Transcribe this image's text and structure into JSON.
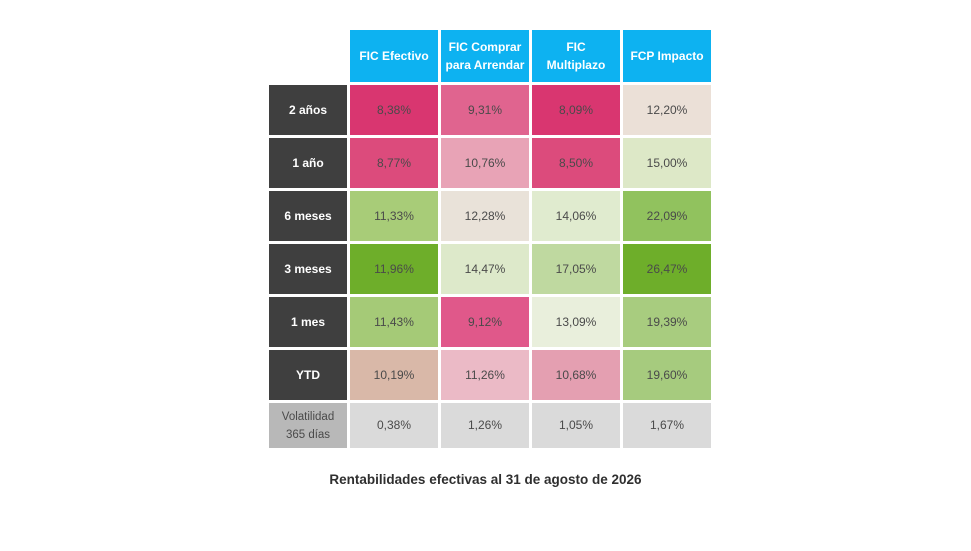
{
  "chart_data": {
    "type": "table",
    "title": "Rentabilidades efectivas al 31 de agosto de 2026",
    "columns": [
      "FIC Efectivo",
      "FIC Comprar\npara Arrendar",
      "FIC\nMultiplazo",
      "FCP Impacto"
    ],
    "rows": [
      {
        "label": "2 años",
        "values": [
          "8,38%",
          "9,31%",
          "8,09%",
          "12,20%"
        ],
        "colors": [
          "#d93670",
          "#e0648f",
          "#d93670",
          "#ebe0d7"
        ]
      },
      {
        "label": "1 año",
        "values": [
          "8,77%",
          "10,76%",
          "8,50%",
          "15,00%"
        ],
        "colors": [
          "#dc4b7c",
          "#e8a3b6",
          "#dc4b7c",
          "#dde8c7"
        ]
      },
      {
        "label": "6 meses",
        "values": [
          "11,33%",
          "12,28%",
          "14,06%",
          "22,09%"
        ],
        "colors": [
          "#a8cc78",
          "#e9e2d9",
          "#e0ebcf",
          "#91c25e"
        ]
      },
      {
        "label": "3 meses",
        "values": [
          "11,96%",
          "14,47%",
          "17,05%",
          "26,47%"
        ],
        "colors": [
          "#6eae2a",
          "#dde9ca",
          "#bfd9a0",
          "#6eae2a"
        ]
      },
      {
        "label": "1 mes",
        "values": [
          "11,43%",
          "9,12%",
          "13,09%",
          "19,39%"
        ],
        "colors": [
          "#a5ca77",
          "#e0588a",
          "#e9efdc",
          "#a8cc7f"
        ]
      },
      {
        "label": "YTD",
        "values": [
          "10,19%",
          "11,26%",
          "10,68%",
          "19,60%"
        ],
        "colors": [
          "#d9b8a8",
          "#ebbac6",
          "#e49fb1",
          "#a6cb7e"
        ]
      },
      {
        "label": "Volatilidad\n365 días",
        "values": [
          "0,38%",
          "1,26%",
          "1,05%",
          "1,67%"
        ],
        "colors": [
          "#dadada",
          "#dadada",
          "#dadada",
          "#dadada"
        ],
        "light": true
      }
    ],
    "colors": {
      "header": "#0db2f1",
      "row_header": "#3f3f3f",
      "row_header_light": "#b8b8b8"
    }
  }
}
